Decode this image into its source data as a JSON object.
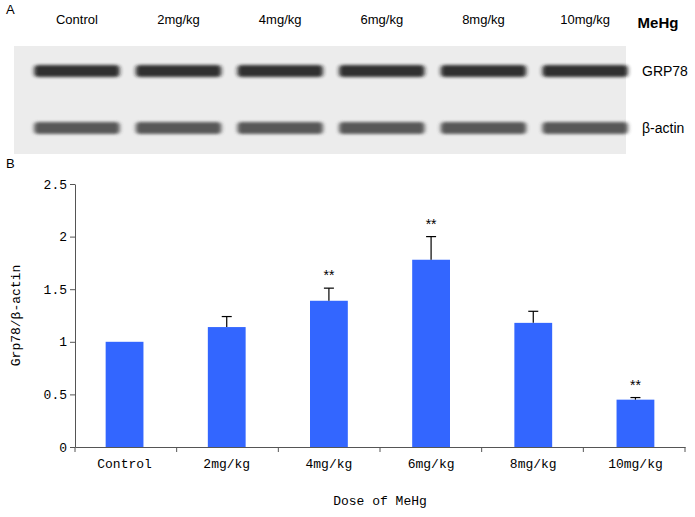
{
  "panel_a": {
    "label": "A",
    "treatment": "MeHg",
    "lanes": [
      "Control",
      "2mg/kg",
      "4mg/kg",
      "6mg/kg",
      "8mg/kg",
      "10mg/kg"
    ],
    "bands": [
      "GRP78",
      "β-actin"
    ]
  },
  "panel_b": {
    "label": "B"
  },
  "chart_data": {
    "type": "bar",
    "categories": [
      "Control",
      "2mg/kg",
      "4mg/kg",
      "6mg/kg",
      "8mg/kg",
      "10mg/kg"
    ],
    "values": [
      1.0,
      1.14,
      1.39,
      1.78,
      1.18,
      0.45
    ],
    "errors": [
      null,
      0.1,
      0.12,
      0.22,
      0.11,
      0.02
    ],
    "color": "#3366ff",
    "x_label": "Dose of MeHg",
    "y_label": "Grp78/β-actin",
    "ylim": [
      0,
      2.5
    ],
    "yticks": [
      0,
      0.5,
      1,
      1.5,
      2,
      2.5
    ],
    "annotations": [
      {
        "x": "4mg/kg",
        "text": "**"
      },
      {
        "x": "6mg/kg",
        "text": "**"
      },
      {
        "x": "10mg/kg",
        "text": "**"
      }
    ]
  }
}
